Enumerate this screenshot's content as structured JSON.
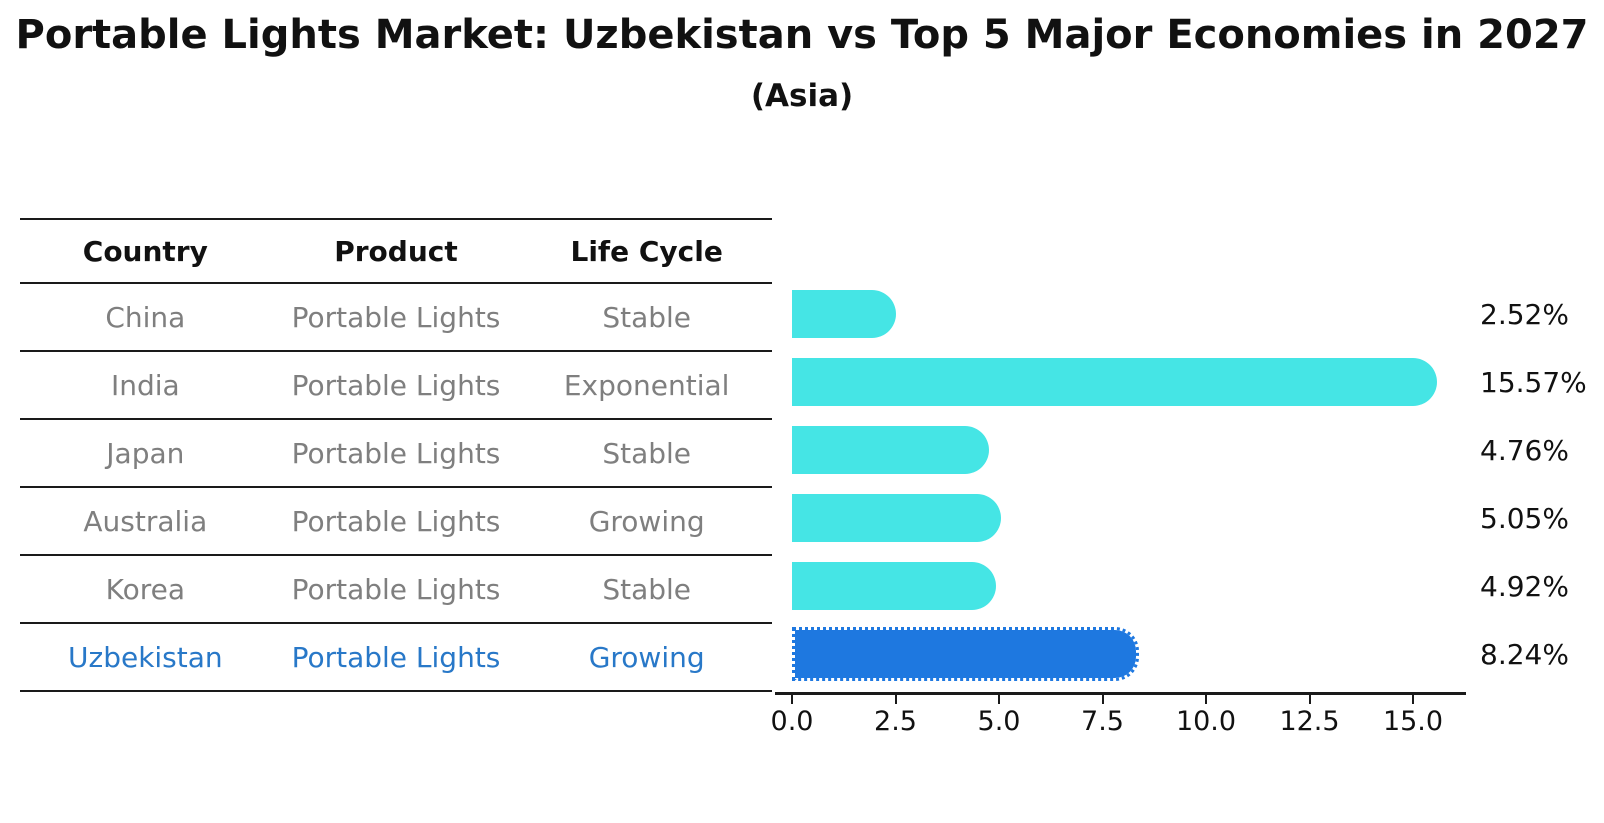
{
  "title": "Portable Lights Market: Uzbekistan vs Top 5 Major Economies in 2027",
  "subtitle": "(Asia)",
  "table": {
    "headers": [
      "Country",
      "Product",
      "Life Cycle"
    ],
    "rows": [
      {
        "country": "China",
        "product": "Portable Lights",
        "life_cycle": "Stable",
        "highlight": false
      },
      {
        "country": "India",
        "product": "Portable Lights",
        "life_cycle": "Exponential",
        "highlight": false
      },
      {
        "country": "Japan",
        "product": "Portable Lights",
        "life_cycle": "Stable",
        "highlight": false
      },
      {
        "country": "Australia",
        "product": "Portable Lights",
        "life_cycle": "Growing",
        "highlight": false
      },
      {
        "country": "Korea",
        "product": "Portable Lights",
        "life_cycle": "Stable",
        "highlight": false
      },
      {
        "country": "Uzbekistan",
        "product": "Portable Lights",
        "life_cycle": "Growing",
        "highlight": true
      }
    ]
  },
  "chart_data": {
    "type": "bar",
    "orientation": "horizontal",
    "title": "Portable Lights Market: Uzbekistan vs Top 5 Major Economies in 2027",
    "subtitle": "(Asia)",
    "categories": [
      "China",
      "India",
      "Japan",
      "Australia",
      "Korea",
      "Uzbekistan"
    ],
    "values": [
      2.52,
      15.57,
      4.76,
      5.05,
      4.92,
      8.24
    ],
    "value_labels": [
      "2.52%",
      "15.57%",
      "4.76%",
      "5.05%",
      "4.92%",
      "8.24%"
    ],
    "highlight_index": 5,
    "xlabel": "",
    "ylabel": "",
    "xlim": [
      0,
      16.28
    ],
    "xtick_values": [
      0,
      2.5,
      5,
      7.5,
      10,
      12.5,
      15
    ],
    "xtick_labels": [
      "0.0",
      "2.5",
      "5.0",
      "7.5",
      "10.0",
      "12.5",
      "15.0"
    ],
    "grid": false,
    "legend": "none",
    "bar_color": "#45e5e5",
    "highlight_bar_color": "#1e78e0",
    "highlight_text_color": "#2878c8",
    "row_text_color": "#7f7f7f",
    "axis_color": "#1a1a1a"
  }
}
